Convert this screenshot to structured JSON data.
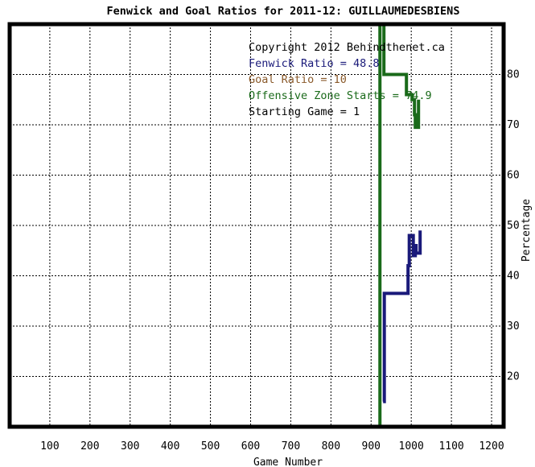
{
  "chart_data": {
    "type": "line",
    "title": "Fenwick and Goal Ratios for 2011-12: GUILLAUMEDESBIENS",
    "xlabel": "Game Number",
    "ylabel": "Percentage",
    "xlim": [
      0,
      1230
    ],
    "ylim": [
      10,
      90
    ],
    "x_ticks": [
      100,
      200,
      300,
      400,
      500,
      600,
      700,
      800,
      900,
      1000,
      1100,
      1200
    ],
    "y_ticks": [
      20,
      30,
      40,
      50,
      60,
      70,
      80
    ],
    "grid": true,
    "annotations": [
      {
        "text": "Copyright 2012 Behindthenet.ca",
        "color": "#000000"
      },
      {
        "text": "Fenwick Ratio = 48.8",
        "color": "#1a1a7a"
      },
      {
        "text": "Goal Ratio = 10",
        "color": "#8a5a2b"
      },
      {
        "text": "Offensive Zone Starts = 74.9",
        "color": "#1a6a1a"
      },
      {
        "text": "Starting Game = 1",
        "color": "#000000"
      }
    ],
    "vertical_line": {
      "x": 922,
      "color": "#1a6a1a"
    },
    "series": [
      {
        "color": "#1a1a7a",
        "points": [
          [
            930,
            15
          ],
          [
            933,
            15
          ],
          [
            933,
            36.5
          ],
          [
            992,
            36.5
          ],
          [
            992,
            42
          ],
          [
            995,
            42
          ],
          [
            995,
            48
          ],
          [
            1005,
            48
          ],
          [
            1005,
            44
          ],
          [
            1010,
            44
          ],
          [
            1010,
            46
          ],
          [
            1012,
            46
          ],
          [
            1012,
            44.5
          ],
          [
            1022,
            44.5
          ],
          [
            1022,
            49
          ]
        ]
      },
      {
        "color": "#1a6a1a",
        "points": [
          [
            932,
            90
          ],
          [
            932,
            80
          ],
          [
            988,
            80
          ],
          [
            988,
            76
          ],
          [
            1002,
            76
          ],
          [
            1002,
            75
          ],
          [
            1008,
            75
          ],
          [
            1008,
            72
          ],
          [
            1010,
            72
          ],
          [
            1010,
            69.5
          ],
          [
            1018,
            69.5
          ],
          [
            1018,
            75
          ]
        ]
      }
    ]
  }
}
